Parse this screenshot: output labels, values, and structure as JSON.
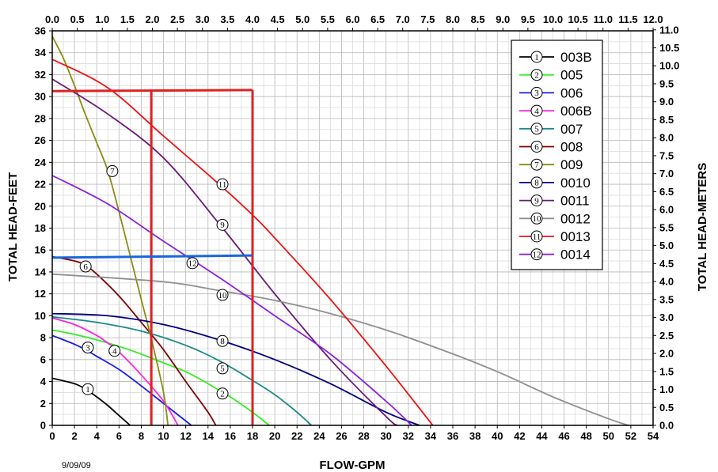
{
  "date_label": "9/09/09",
  "chart_data": {
    "type": "line",
    "title": "",
    "xlabel": "FLOW-GPM",
    "ylabel": "TOTAL HEAD-FEET",
    "x2label": "",
    "y2label": "TOTAL HEAD-METERS",
    "xlim": [
      0,
      54
    ],
    "ylim": [
      0,
      36
    ],
    "x2lim": [
      0,
      12
    ],
    "y2lim": [
      0,
      11
    ],
    "xticks": [
      "0",
      "2",
      "4",
      "6",
      "8",
      "10",
      "12",
      "14",
      "16",
      "18",
      "20",
      "22",
      "24",
      "26",
      "28",
      "30",
      "32",
      "34",
      "36",
      "38",
      "40",
      "42",
      "44",
      "46",
      "48",
      "50",
      "52",
      "54"
    ],
    "yticks": [
      "0",
      "2",
      "4",
      "6",
      "8",
      "10",
      "12",
      "14",
      "16",
      "18",
      "20",
      "22",
      "24",
      "26",
      "28",
      "30",
      "32",
      "34",
      "36"
    ],
    "x2ticks": [
      "0.0",
      "0.5",
      "1.0",
      "1.5",
      "2.0",
      "2.5",
      "3.0",
      "3.5",
      "4.0",
      "4.5",
      "5.0",
      "5.5",
      "6.0",
      "6.5",
      "7.0",
      "7.5",
      "8.0",
      "8.5",
      "9.0",
      "9.5",
      "10.0",
      "10.5",
      "11.0",
      "11.5",
      "12.0"
    ],
    "y2ticks": [
      "0.0",
      "0.5",
      "1.0",
      "1.5",
      "2.0",
      "2.5",
      "3.0",
      "3.5",
      "4.0",
      "4.5",
      "5.0",
      "5.5",
      "6.0",
      "6.5",
      "7.0",
      "7.5",
      "8.0",
      "8.5",
      "9.0",
      "9.5",
      "10.0",
      "10.5",
      "11.0"
    ],
    "grid": true,
    "legend_position": "top-right",
    "series": [
      {
        "name": "003B",
        "marker": "1",
        "color": "#000000",
        "x": [
          0,
          2,
          3,
          4,
          5,
          6,
          7
        ],
        "y": [
          4.3,
          3.8,
          3.3,
          2.6,
          1.8,
          0.9,
          0
        ]
      },
      {
        "name": "005",
        "marker": "2",
        "color": "#33ee22",
        "x": [
          0,
          2,
          4,
          6,
          8,
          10,
          12,
          14,
          15,
          16,
          18,
          19.5
        ],
        "y": [
          8.7,
          8.3,
          7.8,
          7.2,
          6.5,
          5.7,
          4.9,
          3.8,
          3.2,
          2.6,
          1.2,
          0
        ]
      },
      {
        "name": "006",
        "marker": "3",
        "color": "#1a1aee",
        "x": [
          0,
          2,
          3,
          4,
          6,
          8,
          10,
          12.5
        ],
        "y": [
          8.2,
          7.4,
          6.9,
          6.3,
          5.1,
          3.6,
          2,
          0
        ]
      },
      {
        "name": "006B",
        "marker": "4",
        "color": "#ff22dd",
        "x": [
          0,
          2,
          4,
          5,
          6,
          8,
          10,
          11.3
        ],
        "y": [
          9.8,
          9.2,
          8.2,
          7.5,
          6.7,
          4.6,
          2.2,
          0
        ]
      },
      {
        "name": "007",
        "marker": "5",
        "color": "#1a8a88",
        "x": [
          0,
          4,
          8,
          12,
          15,
          18,
          20,
          22,
          23.3
        ],
        "y": [
          9.9,
          9.4,
          8.6,
          7.3,
          5.9,
          4.1,
          2.8,
          1.2,
          0
        ]
      },
      {
        "name": "008",
        "marker": "6",
        "color": "#800000",
        "x": [
          0,
          2,
          3,
          4,
          6,
          8,
          10,
          12,
          14,
          14.7
        ],
        "y": [
          15.4,
          15,
          14.6,
          13.8,
          11.8,
          9.4,
          6.9,
          4,
          1.2,
          0
        ]
      },
      {
        "name": "009",
        "marker": "7",
        "color": "#8c8c14",
        "x": [
          0,
          1,
          2,
          3,
          4,
          5,
          6,
          7,
          8,
          9,
          10,
          10.4
        ],
        "y": [
          35.5,
          33.5,
          31,
          28.3,
          25.8,
          23.2,
          19.5,
          15.5,
          11.5,
          7.5,
          3,
          0
        ]
      },
      {
        "name": "0010",
        "marker": "8",
        "color": "#000080",
        "x": [
          0,
          5,
          10,
          15,
          20,
          25,
          30,
          33
        ],
        "y": [
          10.2,
          10,
          9.2,
          7.8,
          6,
          3.8,
          1.2,
          0
        ]
      },
      {
        "name": "0011",
        "marker": "9",
        "color": "#6a1a7a",
        "x": [
          0,
          5,
          10,
          15,
          20,
          25,
          30,
          31
        ],
        "y": [
          31.6,
          28.4,
          24.4,
          18.4,
          12,
          6,
          0.8,
          0
        ]
      },
      {
        "name": "0012",
        "marker": "10",
        "color": "#909090",
        "x": [
          0,
          10,
          15,
          20,
          25,
          30,
          35,
          40,
          45,
          50,
          51.8
        ],
        "y": [
          13.8,
          13.1,
          12.3,
          11.4,
          10.2,
          8.7,
          6.9,
          4.9,
          2.6,
          0.6,
          0
        ]
      },
      {
        "name": "0013",
        "marker": "11",
        "color": "#ee1111",
        "x": [
          0,
          5,
          10,
          15,
          18,
          20,
          25,
          30,
          34.2
        ],
        "y": [
          33.4,
          30.8,
          26.4,
          22,
          19.2,
          17.1,
          11.5,
          5.4,
          0
        ]
      },
      {
        "name": "0014",
        "marker": "12",
        "color": "#8a22dd",
        "x": [
          0,
          5,
          10,
          15,
          20,
          25,
          30,
          32.3
        ],
        "y": [
          22.8,
          20.2,
          16.8,
          13.5,
          10,
          6.5,
          2.2,
          0
        ]
      }
    ],
    "marker_positions": [
      {
        "label": "1",
        "x": 3.2,
        "y": 3.3
      },
      {
        "label": "2",
        "x": 15.3,
        "y": 2.9
      },
      {
        "label": "3",
        "x": 3.2,
        "y": 7.1
      },
      {
        "label": "4",
        "x": 5.6,
        "y": 6.8
      },
      {
        "label": "5",
        "x": 15.3,
        "y": 5.2
      },
      {
        "label": "6",
        "x": 3,
        "y": 14.5
      },
      {
        "label": "7",
        "x": 5.4,
        "y": 23.2
      },
      {
        "label": "8",
        "x": 15.3,
        "y": 7.7
      },
      {
        "label": "9",
        "x": 15.3,
        "y": 18.3
      },
      {
        "label": "10",
        "x": 15.3,
        "y": 11.9
      },
      {
        "label": "11",
        "x": 15.3,
        "y": 22
      },
      {
        "label": "12",
        "x": 12.6,
        "y": 14.8
      }
    ],
    "annotations": [
      {
        "type": "line",
        "color": "#dd2222",
        "x": [
          0,
          18
        ],
        "y": [
          30.5,
          30.6
        ]
      },
      {
        "type": "line",
        "color": "#dd2222",
        "x": [
          8.9,
          8.9
        ],
        "y": [
          30.5,
          0
        ]
      },
      {
        "type": "line",
        "color": "#dd2222",
        "x": [
          18,
          18
        ],
        "y": [
          30.6,
          0
        ]
      },
      {
        "type": "line",
        "color": "#1a66dd",
        "x": [
          0,
          18
        ],
        "y": [
          15.3,
          15.5
        ]
      }
    ]
  }
}
